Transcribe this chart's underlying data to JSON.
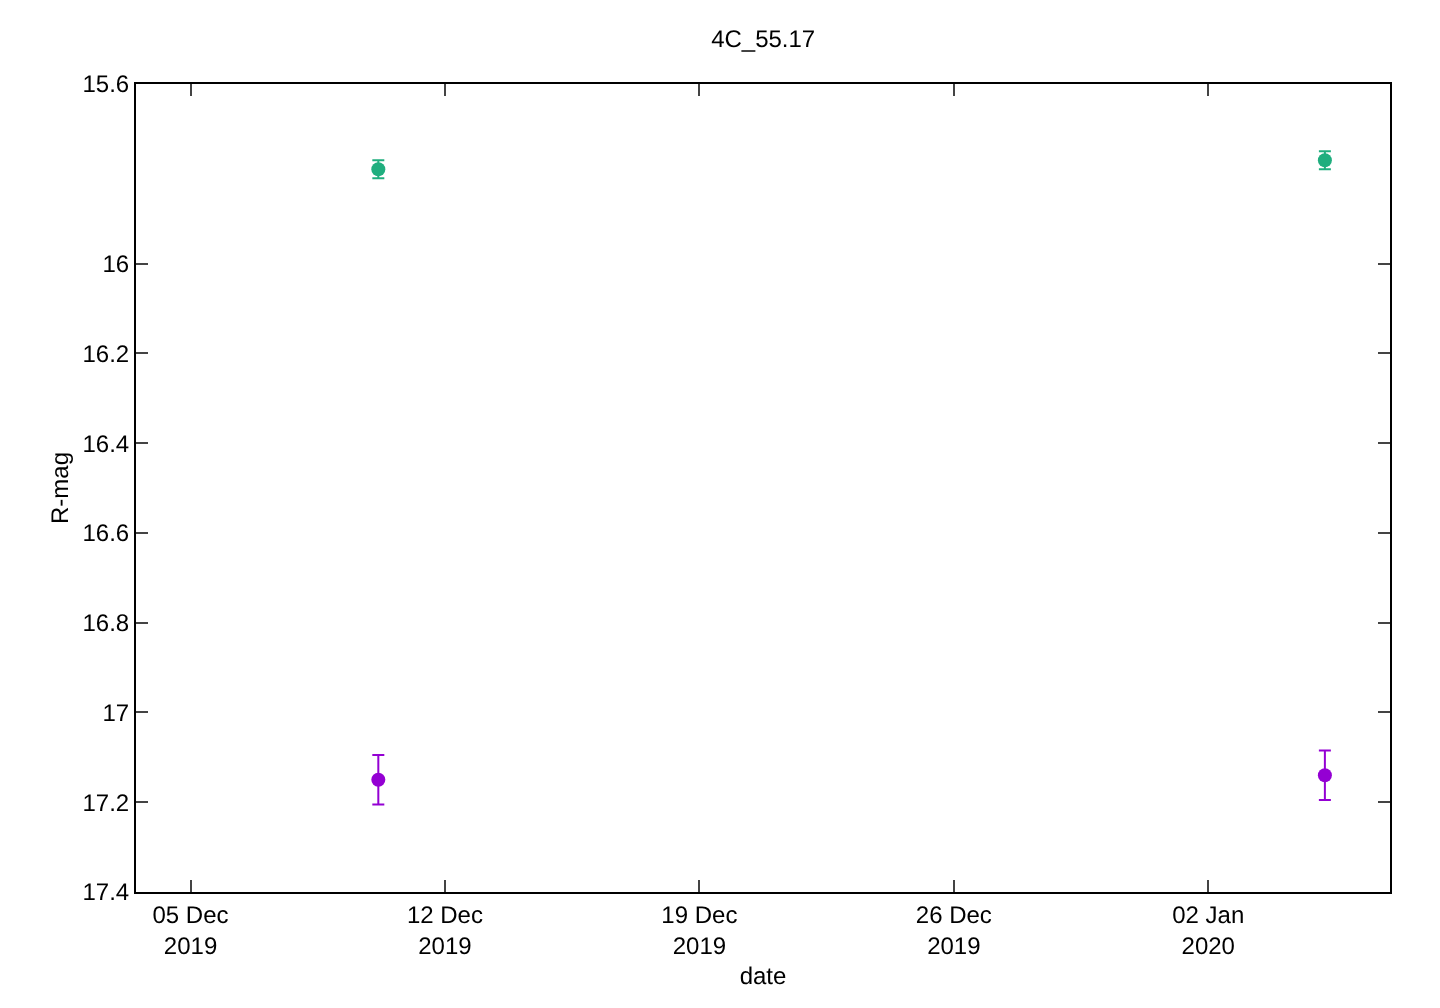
{
  "chart_data": {
    "type": "scatter",
    "title": "4C_55.17",
    "xlabel": "date",
    "ylabel": "R-mag",
    "xlim": [
      "2019-12-03T12:00",
      "2020-01-07T00:00"
    ],
    "xticks": [
      {
        "value": "2019-12-05",
        "label": "05 Dec\n2019"
      },
      {
        "value": "2019-12-12",
        "label": "12 Dec\n2019"
      },
      {
        "value": "2019-12-19",
        "label": "19 Dec\n2019"
      },
      {
        "value": "2019-12-26",
        "label": "26 Dec\n2019"
      },
      {
        "value": "2020-01-02",
        "label": "02 Jan\n2020"
      }
    ],
    "ylim": [
      17.4,
      15.6
    ],
    "yticks": [
      15.6,
      16,
      16.2,
      16.4,
      16.6,
      16.8,
      17,
      17.2,
      17.4
    ],
    "grid": false,
    "marker": "circle",
    "series": [
      {
        "color": "#1fae7e",
        "x": [
          "2019-12-10T04:00",
          "2020-01-05T05:00"
        ],
        "values": [
          15.79,
          15.77
        ],
        "errors": [
          0.02,
          0.02
        ]
      },
      {
        "color": "#9400d3",
        "x": [
          "2019-12-10T04:00",
          "2020-01-05T05:00"
        ],
        "values": [
          17.15,
          17.14
        ],
        "errors": [
          0.055,
          0.055
        ]
      }
    ]
  }
}
